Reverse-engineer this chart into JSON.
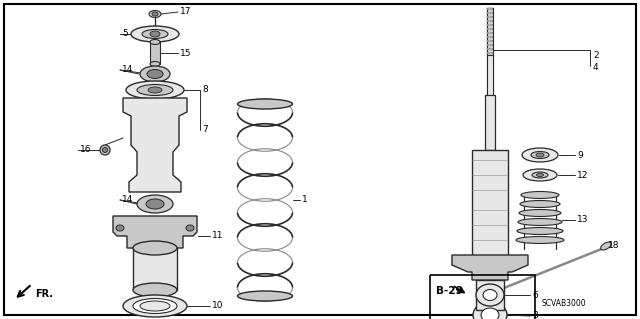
{
  "bg_color": "#ffffff",
  "border_color": "#000000",
  "line_color": "#2a2a2a",
  "gray_fill": "#c8c8c8",
  "dark_gray": "#888888",
  "light_gray": "#e8e8e8",
  "fig_width": 6.4,
  "fig_height": 3.19,
  "diagram_code": "SCVAB3000",
  "ref_code": "B-29",
  "fr_label": "FR."
}
